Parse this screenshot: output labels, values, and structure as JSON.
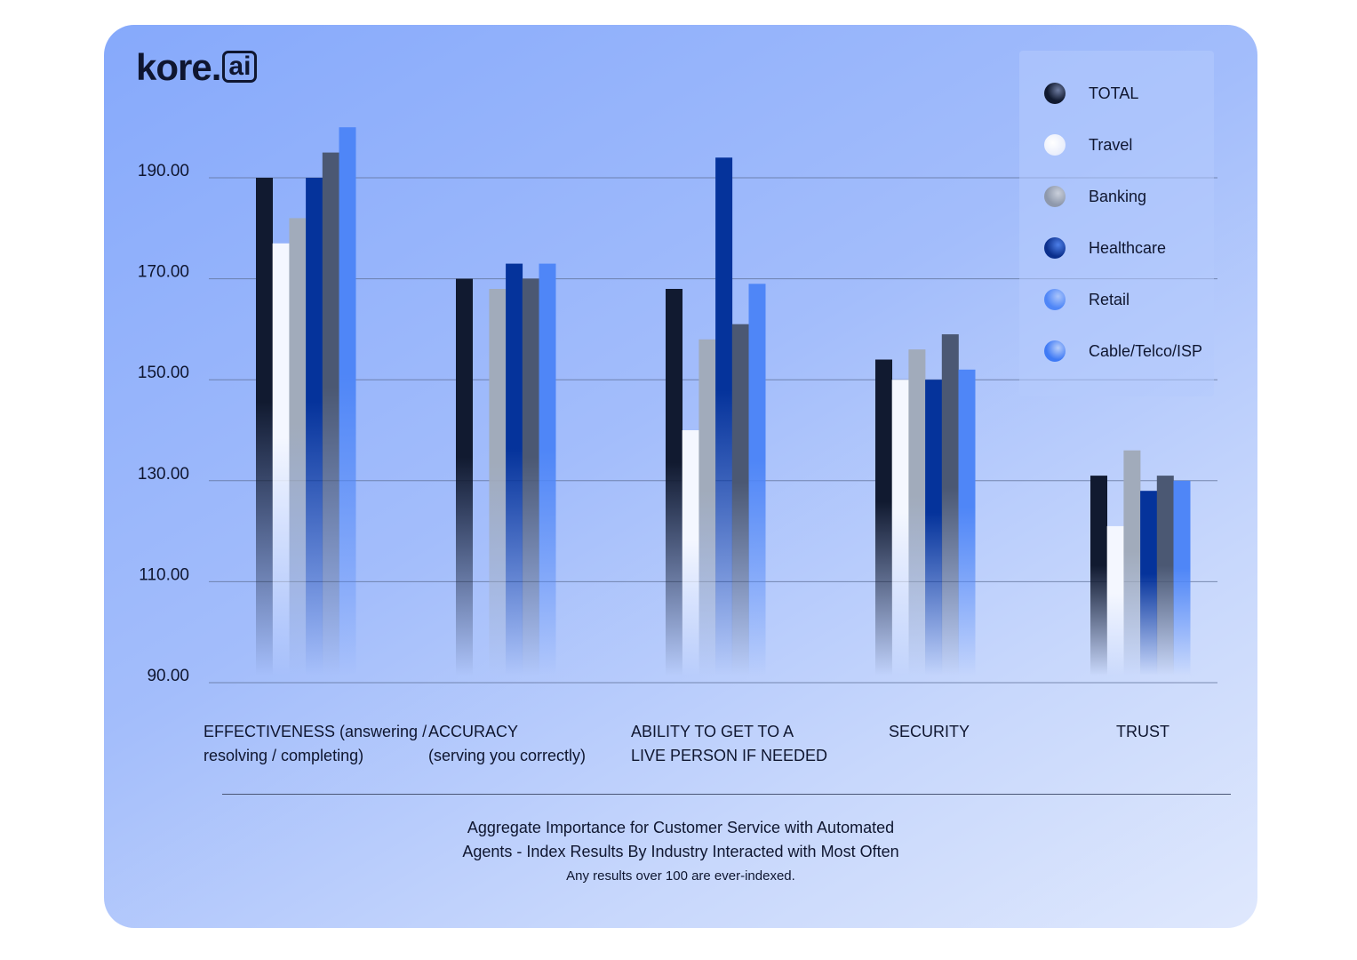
{
  "brand": {
    "name": "kore",
    "dot": ".",
    "suffix": "ai"
  },
  "chart_data": {
    "type": "bar",
    "title": "Aggregate Importance for Customer Service with Automated Agents - Index Results By Industry Interacted with Most Often",
    "title_line1": "Aggregate Importance for Customer Service with Automated",
    "title_line2": "Agents - Index Results By Industry Interacted with Most Often",
    "subtitle": "Any results over 100 are ever-indexed.",
    "ylim": [
      90,
      190
    ],
    "yticks": [
      90,
      110,
      130,
      150,
      170,
      190
    ],
    "ytick_labels": [
      "90.00",
      "110.00",
      "130.00",
      "150.00",
      "170.00",
      "190.00"
    ],
    "grid": true,
    "legend_position": "top-right",
    "categories": [
      {
        "line1": "EFFECTIVENESS (answering /",
        "line2": "resolving / completing)"
      },
      {
        "line1": "ACCURACY",
        "line2": "(serving you correctly)"
      },
      {
        "line1": "ABILITY TO GET TO A",
        "line2": "LIVE PERSON IF NEEDED"
      },
      {
        "line1": "SECURITY",
        "line2": ""
      },
      {
        "line1": "TRUST",
        "line2": ""
      }
    ],
    "series": [
      {
        "name": "TOTAL",
        "color": "#111a30",
        "values": [
          190,
          170,
          168,
          154,
          131
        ]
      },
      {
        "name": "Travel",
        "color": "#f4f7ff",
        "values": [
          177,
          null,
          140,
          150,
          121
        ]
      },
      {
        "name": "Banking",
        "color": "#a1abbb",
        "values": [
          182,
          168,
          158,
          156,
          136
        ]
      },
      {
        "name": "Healthcare",
        "color": "#05339b",
        "values": [
          190,
          173,
          194,
          150,
          128
        ]
      },
      {
        "name": "Retail",
        "color": "#4b5873",
        "values": [
          195,
          170,
          161,
          159,
          131
        ]
      },
      {
        "name": "Cable/Telco/ISP",
        "color": "#4f86f7",
        "values": [
          200,
          173,
          169,
          152,
          130
        ]
      }
    ],
    "legend_swatch_colors": [
      "#111a30",
      "#eef2ff",
      "#9aa4b8",
      "#0b3aa8",
      "#5b8ff8",
      "#4f86f7"
    ]
  }
}
